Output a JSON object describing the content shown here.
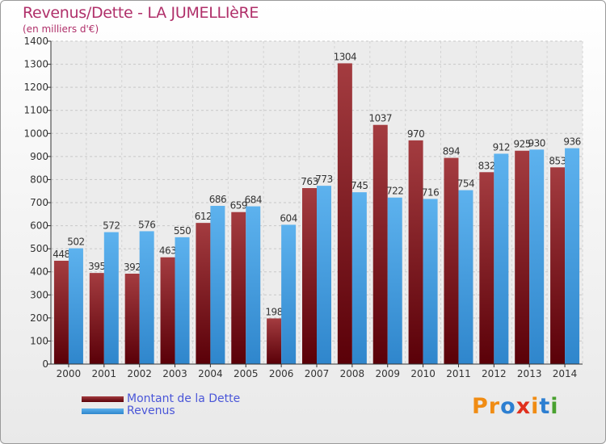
{
  "title": "Revenus/Dette - LA JUMELLIèRE",
  "subtitle": "(en milliers d'€)",
  "legend": [
    {
      "label": "Montant de la Dette",
      "color": "#7a0f16"
    },
    {
      "label": "Revenus",
      "color": "#3a9be2"
    }
  ],
  "logo": {
    "text": "Proxiti",
    "colors": [
      "#f08c14",
      "#f08c14",
      "#2d7fd1",
      "#e0301e",
      "#f08c14",
      "#2d7fd1",
      "#49a12f"
    ]
  },
  "chart_data": {
    "type": "bar",
    "title": "Revenus/Dette - LA JUMELLIèRE",
    "ylabel": "(en milliers d'€)",
    "xlabel": "",
    "ylim": [
      0,
      1400
    ],
    "yticks": [
      0,
      100,
      200,
      300,
      400,
      500,
      600,
      700,
      800,
      900,
      1000,
      1100,
      1200,
      1300,
      1400
    ],
    "grid": true,
    "legend_position": "bottom-left",
    "categories": [
      "2000",
      "2001",
      "2002",
      "2003",
      "2004",
      "2005",
      "2006",
      "2007",
      "2008",
      "2009",
      "2010",
      "2011",
      "2012",
      "2013",
      "2014"
    ],
    "series": [
      {
        "name": "Montant de la Dette",
        "color": "#7a0f16",
        "values": [
          448,
          395,
          392,
          463,
          612,
          659,
          198,
          763,
          1304,
          1037,
          970,
          894,
          832,
          925,
          853
        ]
      },
      {
        "name": "Revenus",
        "color": "#3a9be2",
        "values": [
          502,
          572,
          576,
          550,
          686,
          684,
          604,
          773,
          745,
          722,
          716,
          754,
          912,
          930,
          936
        ]
      }
    ]
  }
}
